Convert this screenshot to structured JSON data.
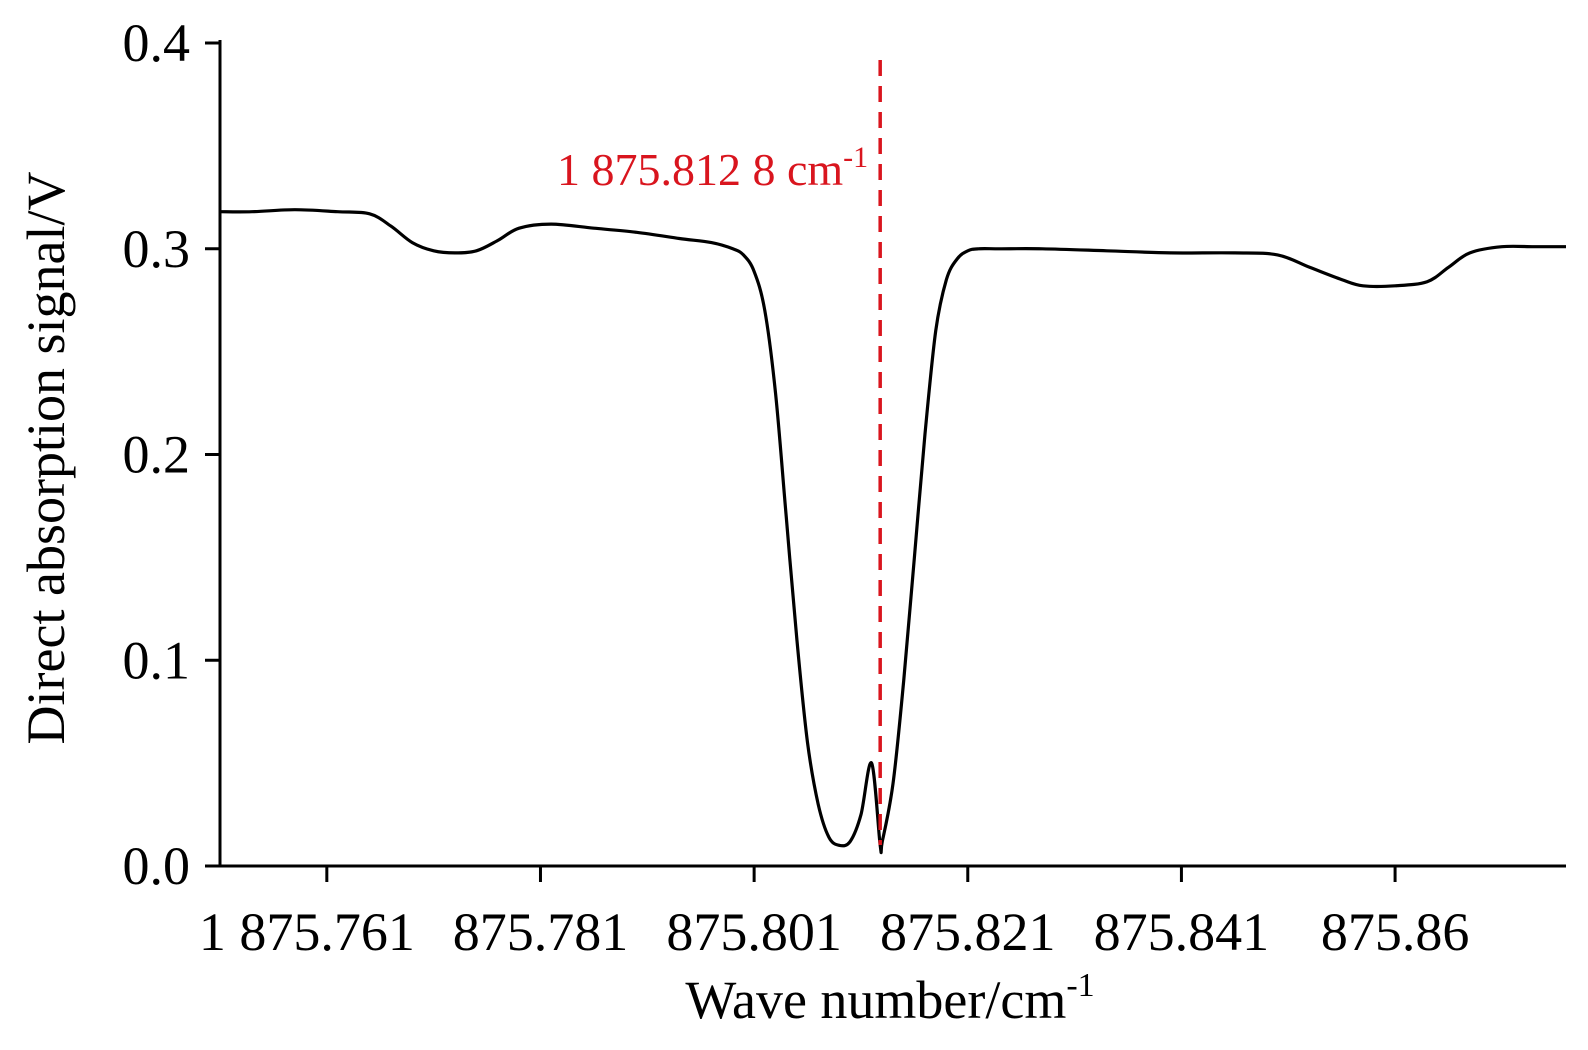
{
  "chart_data": {
    "type": "line",
    "title": "",
    "xlabel": "Wave number/cm",
    "xlabel_sup": "-1",
    "ylabel": "Direct absorption signal/V",
    "xlim": [
      1875.751,
      1875.877
    ],
    "ylim": [
      0.0,
      0.4
    ],
    "grid": false,
    "legend": "none",
    "x_ticks": [
      {
        "value": 1875.761,
        "label": "1 875.761"
      },
      {
        "value": 1875.781,
        "label": "875.781"
      },
      {
        "value": 1875.801,
        "label": "875.801"
      },
      {
        "value": 1875.821,
        "label": "875.821"
      },
      {
        "value": 1875.841,
        "label": "875.841"
      },
      {
        "value": 1875.861,
        "label": "875.86"
      }
    ],
    "y_ticks": [
      {
        "value": 0.0,
        "label": "0.0"
      },
      {
        "value": 0.1,
        "label": "0.1"
      },
      {
        "value": 0.2,
        "label": "0.2"
      },
      {
        "value": 0.3,
        "label": "0.3"
      },
      {
        "value": 0.4,
        "label": "0.4"
      }
    ],
    "series": [
      {
        "color": "#000000",
        "x": [
          1875.751,
          1875.754,
          1875.758,
          1875.762,
          1875.765,
          1875.767,
          1875.769,
          1875.771,
          1875.773,
          1875.775,
          1875.777,
          1875.779,
          1875.782,
          1875.786,
          1875.79,
          1875.794,
          1875.797,
          1875.799,
          1875.8,
          1875.801,
          1875.802,
          1875.803,
          1875.804,
          1875.805,
          1875.806,
          1875.807,
          1875.808,
          1875.809,
          1875.81,
          1875.811,
          1875.812,
          1875.8128,
          1875.813,
          1875.814,
          1875.815,
          1875.816,
          1875.817,
          1875.818,
          1875.819,
          1875.82,
          1875.821,
          1875.822,
          1875.824,
          1875.828,
          1875.834,
          1875.84,
          1875.846,
          1875.85,
          1875.853,
          1875.856,
          1875.858,
          1875.861,
          1875.864,
          1875.866,
          1875.868,
          1875.871,
          1875.874,
          1875.877
        ],
        "y": [
          0.318,
          0.318,
          0.319,
          0.318,
          0.317,
          0.311,
          0.303,
          0.299,
          0.298,
          0.299,
          0.304,
          0.31,
          0.312,
          0.31,
          0.308,
          0.305,
          0.303,
          0.3,
          0.297,
          0.289,
          0.27,
          0.23,
          0.17,
          0.11,
          0.06,
          0.03,
          0.014,
          0.01,
          0.012,
          0.025,
          0.05,
          0.01,
          0.012,
          0.04,
          0.09,
          0.15,
          0.21,
          0.26,
          0.285,
          0.295,
          0.299,
          0.3,
          0.3,
          0.3,
          0.299,
          0.298,
          0.298,
          0.297,
          0.291,
          0.285,
          0.282,
          0.282,
          0.284,
          0.291,
          0.298,
          0.301,
          0.301,
          0.301
        ]
      }
    ],
    "annotations": [
      {
        "type": "vline",
        "x": 1875.8128,
        "color": "#d9151e",
        "style": "dashed",
        "label": "1 875.812 8 cm",
        "label_sup": "-1"
      }
    ]
  }
}
